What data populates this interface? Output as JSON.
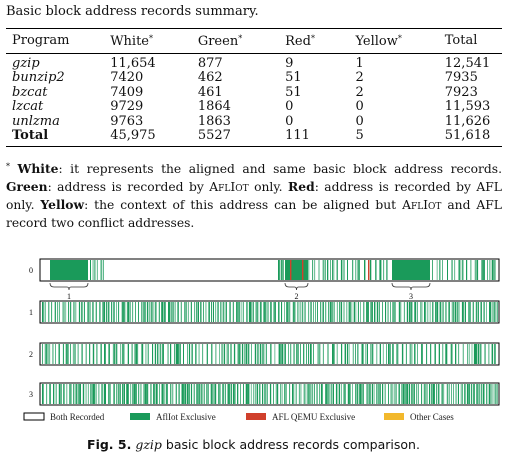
{
  "table_title": "Basic block address records summary.",
  "table": {
    "headers": [
      "Program",
      "White",
      "Green",
      "Red",
      "Yellow",
      "Total"
    ],
    "header_marks": [
      "",
      "*",
      "*",
      "*",
      "*",
      ""
    ],
    "rows": [
      [
        "gzip",
        "11,654",
        "877",
        "9",
        "1",
        "12,541"
      ],
      [
        "bunzip2",
        "7420",
        "462",
        "51",
        "2",
        "7935"
      ],
      [
        "bzcat",
        "7409",
        "461",
        "51",
        "2",
        "7923"
      ],
      [
        "lzcat",
        "9729",
        "1864",
        "0",
        "0",
        "11,593"
      ],
      [
        "unlzma",
        "9763",
        "1863",
        "0",
        "0",
        "11,626"
      ],
      [
        "Total",
        "45,975",
        "5527",
        "111",
        "5",
        "51,618"
      ]
    ]
  },
  "note": {
    "mark": "*",
    "white_label": "White",
    "white_text": ": it represents the aligned and same basic block address records.",
    "green_label": "Green",
    "green_text_a": ": address is recorded by",
    "aflIot": "AflIot",
    "green_text_b": "only.",
    "red_label": "Red",
    "red_text": ": address is recorded by AFL only.",
    "yellow_label": "Yellow",
    "yellow_text_a": ": the context of this address can be aligned but",
    "yellow_text_b": "and AFL record two conflict addresses."
  },
  "figure": {
    "row_labels": [
      "0",
      "1",
      "2",
      "3"
    ],
    "region_labels": [
      "1",
      "2",
      "3"
    ],
    "legend": [
      {
        "label": "Both Recorded",
        "color": "#ffffff"
      },
      {
        "label": "AflIot Exclusive",
        "color": "#1a9a5a"
      },
      {
        "label": "AFL QEMU Exclusive",
        "color": "#d0402c"
      },
      {
        "label": "Other Cases",
        "color": "#f2b82c"
      }
    ],
    "caption_prefix": "Fig. 5.",
    "caption_italic": "gzip",
    "caption_rest": "basic block address records comparison."
  }
}
